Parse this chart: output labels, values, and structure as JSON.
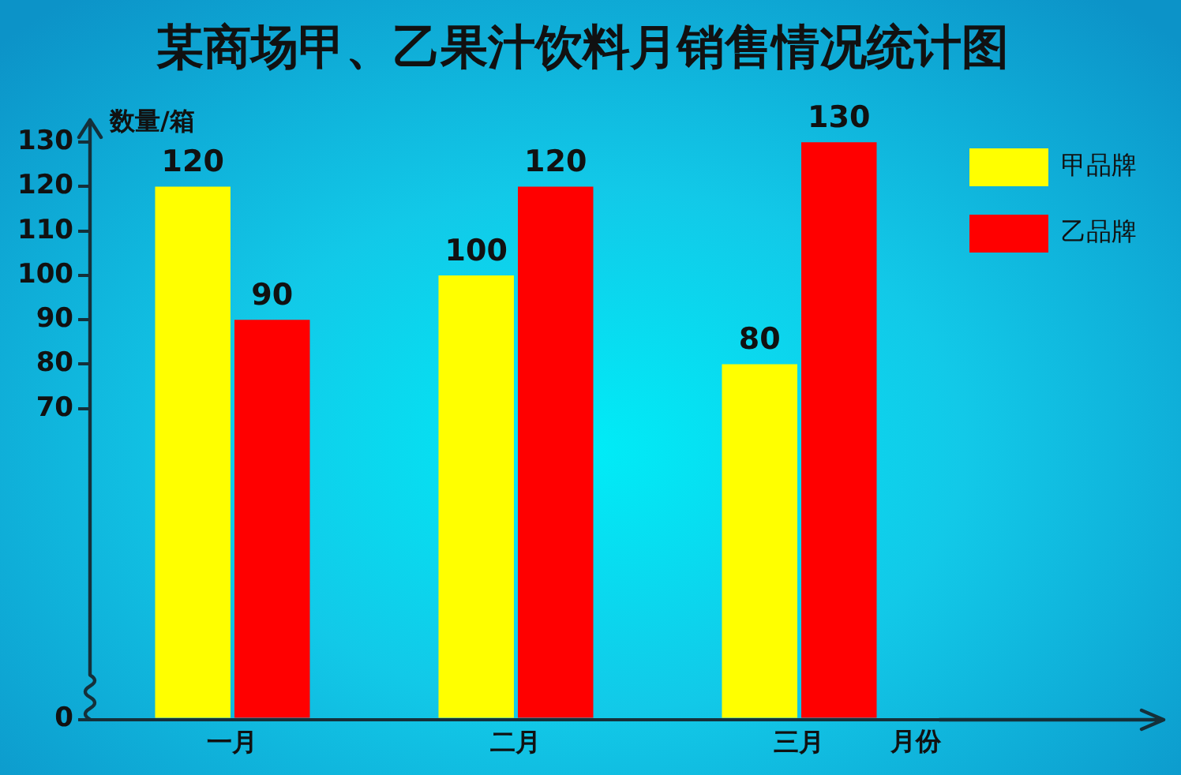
{
  "chart_data": {
    "type": "bar",
    "title": "某商场甲、乙果汁饮料月销售情况统计图",
    "xlabel": "月份",
    "ylabel": "数量/箱",
    "categories": [
      "一月",
      "二月",
      "三月"
    ],
    "series": [
      {
        "name": "甲品牌",
        "color": "#ffff00",
        "values": [
          120,
          100,
          80
        ]
      },
      {
        "name": "乙品牌",
        "color": "#ff0000",
        "values": [
          90,
          120,
          130
        ]
      }
    ],
    "ylim": [
      0,
      135
    ],
    "yticks": [
      0,
      70,
      80,
      90,
      100,
      110,
      120,
      130
    ],
    "data_labels": true,
    "grid": false,
    "legend": "top right"
  }
}
